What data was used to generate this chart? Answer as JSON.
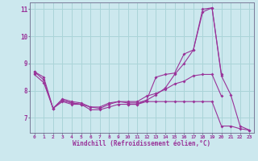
{
  "xlabel": "Windchill (Refroidissement éolien,°C)",
  "background_color": "#cce8ee",
  "line_color": "#993399",
  "grid_color": "#aad4d8",
  "xlim": [
    -0.5,
    23.5
  ],
  "ylim": [
    6.45,
    11.25
  ],
  "yticks": [
    7,
    8,
    9,
    10,
    11
  ],
  "xticks": [
    0,
    1,
    2,
    3,
    4,
    5,
    6,
    7,
    8,
    9,
    10,
    11,
    12,
    13,
    14,
    15,
    16,
    17,
    18,
    19,
    20,
    21,
    22,
    23
  ],
  "lines": [
    [
      8.7,
      8.4,
      7.35,
      7.6,
      7.5,
      7.5,
      7.3,
      7.3,
      7.4,
      7.5,
      7.5,
      7.5,
      7.6,
      7.6,
      7.6,
      7.6,
      7.6,
      7.6,
      7.6,
      7.6,
      6.7,
      6.7,
      6.6,
      6.55
    ],
    [
      8.6,
      8.3,
      7.35,
      7.7,
      7.6,
      7.55,
      7.4,
      7.35,
      7.5,
      7.6,
      7.6,
      7.6,
      7.8,
      7.9,
      8.05,
      8.25,
      8.35,
      8.55,
      8.6,
      8.6,
      7.8,
      null,
      null,
      null
    ],
    [
      8.65,
      null,
      null,
      7.65,
      7.55,
      7.5,
      null,
      null,
      null,
      null,
      7.5,
      7.5,
      7.65,
      8.5,
      8.6,
      8.65,
      9.35,
      9.5,
      11.0,
      11.05,
      8.6,
      null,
      null,
      null
    ],
    [
      8.7,
      8.5,
      7.35,
      7.65,
      7.55,
      7.5,
      7.4,
      7.4,
      7.55,
      7.6,
      7.55,
      7.55,
      7.65,
      7.85,
      8.1,
      8.6,
      9.0,
      9.5,
      10.9,
      11.05,
      8.55,
      7.85,
      6.7,
      6.55
    ]
  ]
}
